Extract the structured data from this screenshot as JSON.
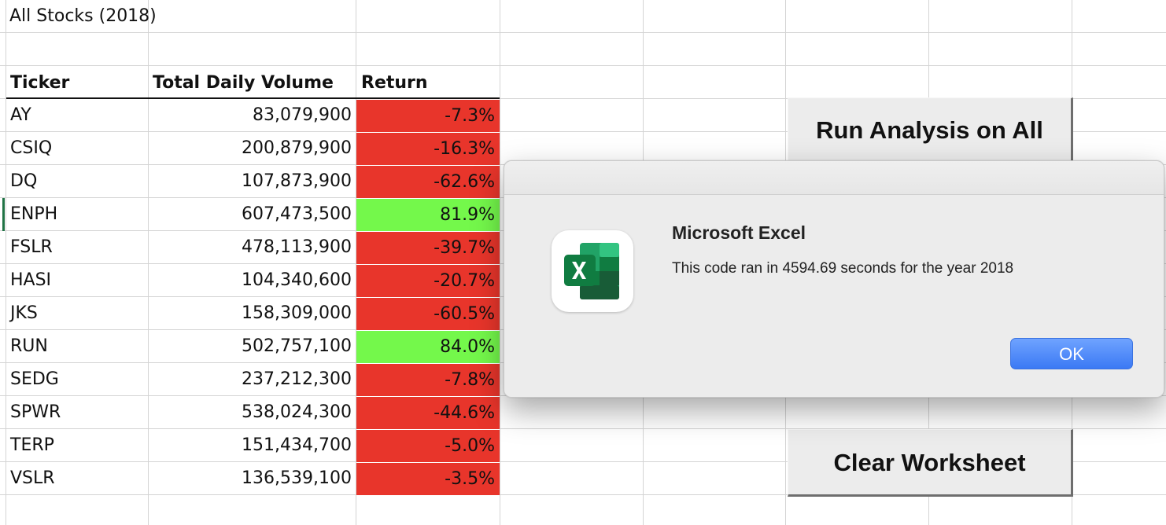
{
  "sheet": {
    "title": "All Stocks (2018)",
    "headers": {
      "ticker": "Ticker",
      "volume": "Total Daily Volume",
      "return": "Return"
    },
    "rows": [
      {
        "ticker": "AY",
        "volume": "83,079,900",
        "return": "-7.3%",
        "status": "negative"
      },
      {
        "ticker": "CSIQ",
        "volume": "200,879,900",
        "return": "-16.3%",
        "status": "negative"
      },
      {
        "ticker": "DQ",
        "volume": "107,873,900",
        "return": "-62.6%",
        "status": "negative"
      },
      {
        "ticker": "ENPH",
        "volume": "607,473,500",
        "return": "81.9%",
        "status": "positive"
      },
      {
        "ticker": "FSLR",
        "volume": "478,113,900",
        "return": "-39.7%",
        "status": "negative"
      },
      {
        "ticker": "HASI",
        "volume": "104,340,600",
        "return": "-20.7%",
        "status": "negative"
      },
      {
        "ticker": "JKS",
        "volume": "158,309,000",
        "return": "-60.5%",
        "status": "negative"
      },
      {
        "ticker": "RUN",
        "volume": "502,757,100",
        "return": "84.0%",
        "status": "positive"
      },
      {
        "ticker": "SEDG",
        "volume": "237,212,300",
        "return": "-7.8%",
        "status": "negative"
      },
      {
        "ticker": "SPWR",
        "volume": "538,024,300",
        "return": "-44.6%",
        "status": "negative"
      },
      {
        "ticker": "TERP",
        "volume": "151,434,700",
        "return": "-5.0%",
        "status": "negative"
      },
      {
        "ticker": "VSLR",
        "volume": "136,539,100",
        "return": "-3.5%",
        "status": "negative"
      }
    ]
  },
  "buttons": {
    "run_all": "Run Analysis on All",
    "clear": "Clear Worksheet"
  },
  "dialog": {
    "title": "Microsoft Excel",
    "message": "This code ran in 4594.69 seconds for the year 2018",
    "ok_label": "OK",
    "icon": "excel-app-icon"
  },
  "colors": {
    "negative": "#e8352b",
    "positive": "#74f84b",
    "grid": "#d4d4d4",
    "ok_button": "#3b79f4",
    "excel_green": "#1f7244"
  }
}
